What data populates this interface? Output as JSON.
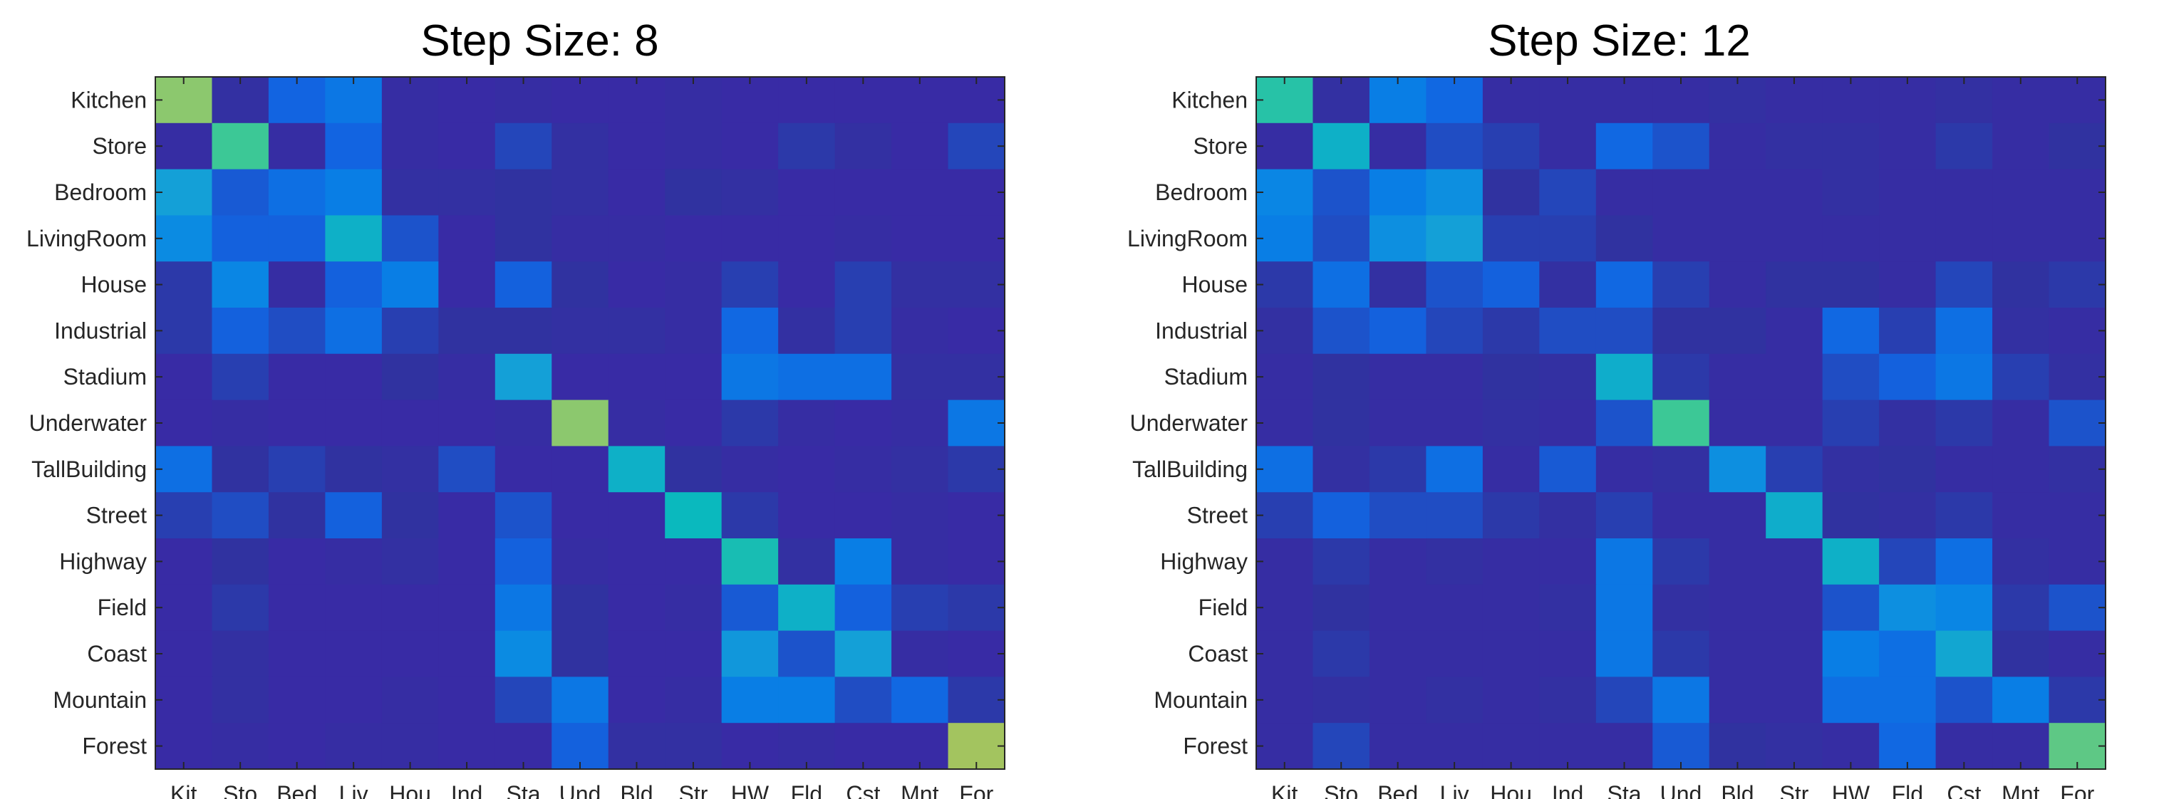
{
  "chart_data": [
    {
      "type": "heatmap",
      "title": "Step Size: 8",
      "xlabel": "",
      "ylabel": "",
      "row_labels": [
        "Kitchen",
        "Store",
        "Bedroom",
        "LivingRoom",
        "House",
        "Industrial",
        "Stadium",
        "Underwater",
        "TallBuilding",
        "Street",
        "Highway",
        "Field",
        "Coast",
        "Mountain",
        "Forest"
      ],
      "col_labels": [
        "Kit",
        "Sto",
        "Bed",
        "Liv",
        "Hou",
        "Ind",
        "Sta",
        "Und",
        "Bld",
        "Str",
        "HW",
        "Fld",
        "Cst",
        "Mnt",
        "For"
      ],
      "colormap": "parula",
      "value_range": [
        0,
        1
      ],
      "values": [
        [
          0.62,
          0.08,
          0.25,
          0.3,
          0.06,
          0.04,
          0.06,
          0.04,
          0.04,
          0.06,
          0.04,
          0.04,
          0.04,
          0.04,
          0.04
        ],
        [
          0.06,
          0.55,
          0.06,
          0.25,
          0.06,
          0.04,
          0.16,
          0.08,
          0.04,
          0.06,
          0.04,
          0.12,
          0.08,
          0.04,
          0.16
        ],
        [
          0.4,
          0.22,
          0.28,
          0.32,
          0.08,
          0.08,
          0.1,
          0.08,
          0.04,
          0.1,
          0.08,
          0.04,
          0.04,
          0.04,
          0.04
        ],
        [
          0.35,
          0.24,
          0.24,
          0.45,
          0.2,
          0.04,
          0.1,
          0.06,
          0.06,
          0.04,
          0.04,
          0.04,
          0.06,
          0.04,
          0.04
        ],
        [
          0.12,
          0.34,
          0.06,
          0.24,
          0.32,
          0.04,
          0.24,
          0.1,
          0.04,
          0.06,
          0.14,
          0.04,
          0.14,
          0.08,
          0.08
        ],
        [
          0.12,
          0.24,
          0.18,
          0.28,
          0.14,
          0.1,
          0.1,
          0.08,
          0.08,
          0.06,
          0.26,
          0.08,
          0.14,
          0.06,
          0.04
        ],
        [
          0.04,
          0.14,
          0.04,
          0.04,
          0.1,
          0.06,
          0.4,
          0.04,
          0.04,
          0.04,
          0.3,
          0.28,
          0.28,
          0.08,
          0.08
        ],
        [
          0.04,
          0.06,
          0.04,
          0.04,
          0.04,
          0.04,
          0.06,
          0.62,
          0.06,
          0.04,
          0.12,
          0.06,
          0.04,
          0.06,
          0.3
        ],
        [
          0.28,
          0.1,
          0.14,
          0.1,
          0.08,
          0.18,
          0.04,
          0.04,
          0.45,
          0.1,
          0.06,
          0.04,
          0.06,
          0.08,
          0.12
        ],
        [
          0.14,
          0.18,
          0.1,
          0.24,
          0.1,
          0.04,
          0.2,
          0.04,
          0.04,
          0.48,
          0.12,
          0.04,
          0.04,
          0.06,
          0.04
        ],
        [
          0.04,
          0.1,
          0.04,
          0.06,
          0.08,
          0.04,
          0.24,
          0.06,
          0.04,
          0.04,
          0.5,
          0.08,
          0.32,
          0.06,
          0.04
        ],
        [
          0.04,
          0.12,
          0.04,
          0.04,
          0.04,
          0.04,
          0.3,
          0.1,
          0.04,
          0.06,
          0.22,
          0.45,
          0.24,
          0.14,
          0.12
        ],
        [
          0.04,
          0.08,
          0.04,
          0.04,
          0.04,
          0.04,
          0.35,
          0.1,
          0.04,
          0.04,
          0.38,
          0.2,
          0.4,
          0.06,
          0.04
        ],
        [
          0.04,
          0.08,
          0.04,
          0.04,
          0.06,
          0.04,
          0.16,
          0.3,
          0.04,
          0.06,
          0.32,
          0.32,
          0.18,
          0.26,
          0.12
        ],
        [
          0.04,
          0.06,
          0.04,
          0.06,
          0.06,
          0.04,
          0.04,
          0.24,
          0.08,
          0.08,
          0.04,
          0.06,
          0.04,
          0.04,
          0.68
        ]
      ]
    },
    {
      "type": "heatmap",
      "title": "Step Size: 12",
      "xlabel": "",
      "ylabel": "",
      "row_labels": [
        "Kitchen",
        "Store",
        "Bedroom",
        "LivingRoom",
        "House",
        "Industrial",
        "Stadium",
        "Underwater",
        "TallBuilding",
        "Street",
        "Highway",
        "Field",
        "Coast",
        "Mountain",
        "Forest"
      ],
      "col_labels": [
        "Kit",
        "Sto",
        "Bed",
        "Liv",
        "Hou",
        "Ind",
        "Sta",
        "Und",
        "Bld",
        "Str",
        "HW",
        "Fld",
        "Cst",
        "Mnt",
        "For"
      ],
      "colormap": "parula",
      "value_range": [
        0,
        1
      ],
      "values": [
        [
          0.52,
          0.08,
          0.32,
          0.26,
          0.06,
          0.06,
          0.06,
          0.06,
          0.08,
          0.06,
          0.06,
          0.06,
          0.08,
          0.06,
          0.06
        ],
        [
          0.06,
          0.45,
          0.06,
          0.18,
          0.14,
          0.06,
          0.26,
          0.2,
          0.06,
          0.08,
          0.08,
          0.06,
          0.12,
          0.06,
          0.1
        ],
        [
          0.34,
          0.2,
          0.32,
          0.36,
          0.1,
          0.16,
          0.06,
          0.06,
          0.06,
          0.06,
          0.08,
          0.06,
          0.06,
          0.06,
          0.06
        ],
        [
          0.32,
          0.18,
          0.36,
          0.4,
          0.14,
          0.14,
          0.1,
          0.06,
          0.06,
          0.06,
          0.06,
          0.06,
          0.06,
          0.06,
          0.06
        ],
        [
          0.12,
          0.28,
          0.08,
          0.2,
          0.24,
          0.08,
          0.26,
          0.14,
          0.06,
          0.1,
          0.1,
          0.06,
          0.16,
          0.1,
          0.12
        ],
        [
          0.08,
          0.2,
          0.24,
          0.16,
          0.12,
          0.18,
          0.18,
          0.1,
          0.1,
          0.06,
          0.26,
          0.14,
          0.28,
          0.08,
          0.06
        ],
        [
          0.06,
          0.1,
          0.06,
          0.06,
          0.1,
          0.08,
          0.44,
          0.12,
          0.06,
          0.06,
          0.18,
          0.24,
          0.3,
          0.14,
          0.08
        ],
        [
          0.06,
          0.1,
          0.06,
          0.06,
          0.08,
          0.06,
          0.2,
          0.55,
          0.06,
          0.06,
          0.14,
          0.08,
          0.12,
          0.06,
          0.2
        ],
        [
          0.28,
          0.08,
          0.12,
          0.28,
          0.06,
          0.22,
          0.06,
          0.08,
          0.36,
          0.14,
          0.08,
          0.1,
          0.06,
          0.06,
          0.08
        ],
        [
          0.14,
          0.24,
          0.18,
          0.18,
          0.12,
          0.08,
          0.14,
          0.06,
          0.06,
          0.44,
          0.1,
          0.08,
          0.12,
          0.06,
          0.06
        ],
        [
          0.06,
          0.12,
          0.06,
          0.08,
          0.06,
          0.06,
          0.3,
          0.12,
          0.06,
          0.06,
          0.45,
          0.16,
          0.28,
          0.08,
          0.06
        ],
        [
          0.06,
          0.1,
          0.06,
          0.06,
          0.06,
          0.08,
          0.3,
          0.08,
          0.06,
          0.06,
          0.2,
          0.36,
          0.34,
          0.12,
          0.2
        ],
        [
          0.06,
          0.12,
          0.06,
          0.06,
          0.06,
          0.06,
          0.3,
          0.12,
          0.06,
          0.06,
          0.32,
          0.28,
          0.42,
          0.1,
          0.06
        ],
        [
          0.06,
          0.08,
          0.06,
          0.08,
          0.06,
          0.08,
          0.16,
          0.3,
          0.06,
          0.06,
          0.28,
          0.28,
          0.2,
          0.32,
          0.12
        ],
        [
          0.06,
          0.16,
          0.06,
          0.06,
          0.06,
          0.06,
          0.06,
          0.22,
          0.1,
          0.08,
          0.06,
          0.26,
          0.06,
          0.06,
          0.58
        ]
      ]
    }
  ]
}
